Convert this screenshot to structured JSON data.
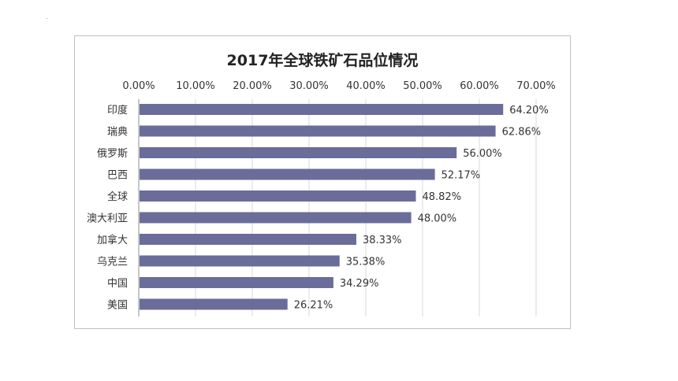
{
  "chart_data": {
    "type": "bar",
    "orientation": "horizontal",
    "title": "2017年全球铁矿石品位情况",
    "xlabel": "",
    "ylabel": "",
    "xlim": [
      0,
      70
    ],
    "x_axis_position": "top",
    "x_ticks": [
      "0.00%",
      "10.00%",
      "20.00%",
      "30.00%",
      "40.00%",
      "50.00%",
      "60.00%",
      "70.00%"
    ],
    "categories": [
      "印度",
      "瑞典",
      "俄罗斯",
      "巴西",
      "全球",
      "澳大利亚",
      "加拿大",
      "乌克兰",
      "中国",
      "美国"
    ],
    "values": [
      64.2,
      62.86,
      56.0,
      52.17,
      48.82,
      48.0,
      38.33,
      35.38,
      34.29,
      26.21
    ],
    "value_labels": [
      "64.20%",
      "62.86%",
      "56.00%",
      "52.17%",
      "48.82%",
      "48.00%",
      "38.33%",
      "35.38%",
      "34.29%",
      "26.21%"
    ],
    "grid": true,
    "legend": "none",
    "bar_color": "#6a6c99"
  }
}
